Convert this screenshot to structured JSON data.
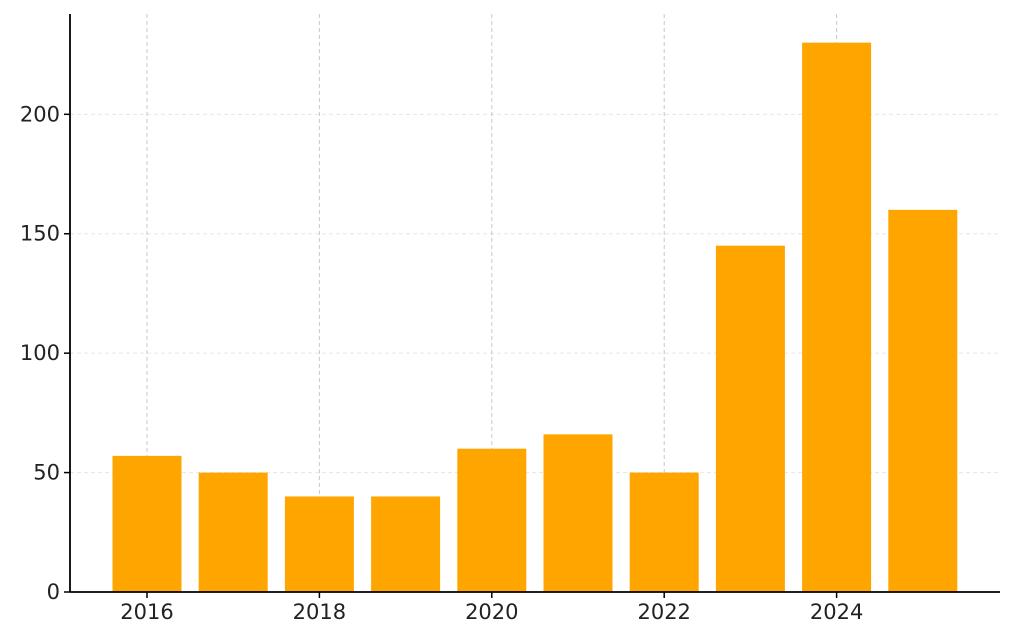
{
  "chart_data": {
    "type": "bar",
    "title": "",
    "xlabel": "",
    "ylabel": "",
    "x": [
      2016,
      2017,
      2018,
      2019,
      2020,
      2021,
      2022,
      2023,
      2024,
      2025
    ],
    "values": [
      57,
      50,
      40,
      40,
      60,
      66,
      50,
      145,
      230,
      160
    ],
    "xticks": [
      "2016",
      "2018",
      "2020",
      "2022",
      "2024"
    ],
    "yticks": [
      "0",
      "50",
      "100",
      "150",
      "200"
    ],
    "ylim": [
      0,
      242
    ],
    "grid": {
      "x": "dashed vertical gridlines at labeled x ticks",
      "y": "light dashed horizontal gridlines at y ticks"
    },
    "colors": {
      "bar": "#ffa500",
      "axis": "#000000",
      "grid_x": "#c8c8c8",
      "grid_y": "#e6e6e6"
    }
  }
}
